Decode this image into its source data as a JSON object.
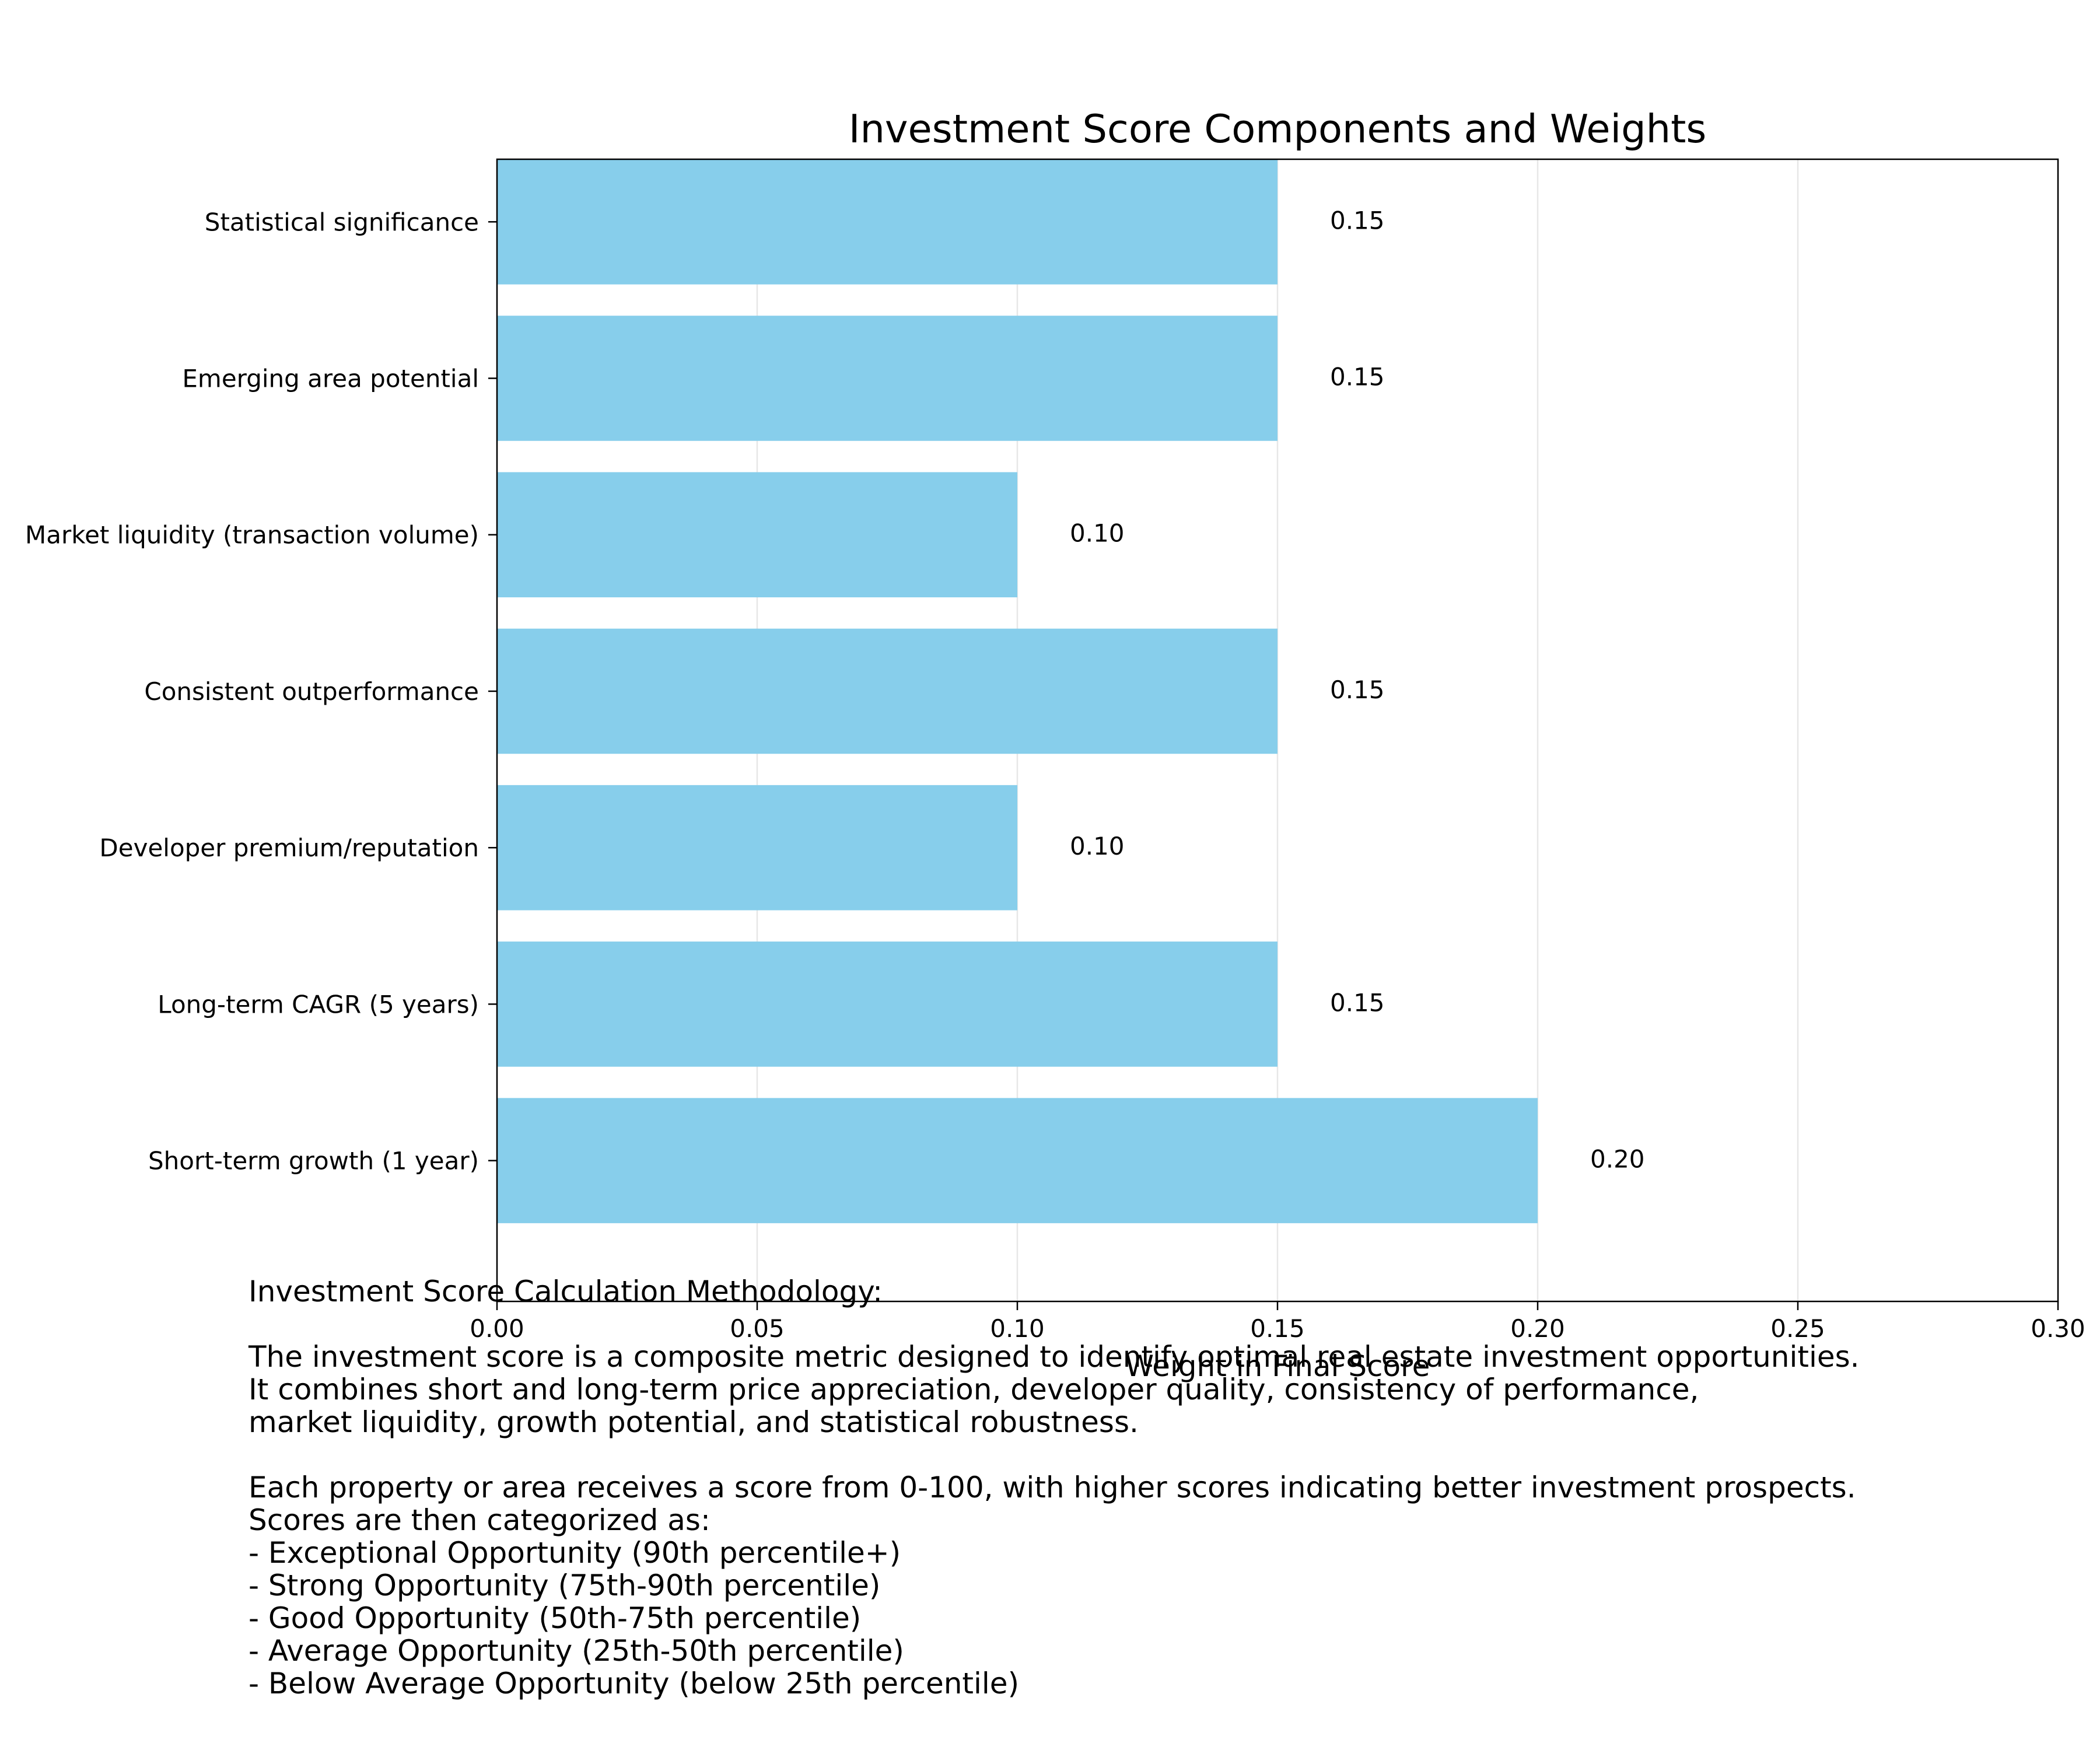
{
  "chart_data": {
    "type": "bar",
    "orientation": "horizontal",
    "title": "Investment Score Components and Weights",
    "xlabel": "Weight in Final Score",
    "ylabel": "",
    "xlim": [
      0,
      0.3
    ],
    "xticks": [
      "0.00",
      "0.05",
      "0.10",
      "0.15",
      "0.20",
      "0.25",
      "0.30"
    ],
    "grid": "x",
    "bar_color": "#87CEEB",
    "categories": [
      "Short-term growth (1 year)",
      "Long-term CAGR (5 years)",
      "Developer premium/reputation",
      "Consistent outperformance",
      "Market liquidity (transaction volume)",
      "Emerging area potential",
      "Statistical significance"
    ],
    "values": [
      0.2,
      0.15,
      0.1,
      0.15,
      0.1,
      0.15,
      0.15
    ],
    "value_labels": [
      "0.20",
      "0.15",
      "0.10",
      "0.15",
      "0.10",
      "0.15",
      "0.15"
    ]
  },
  "methodology": {
    "lines": [
      "Investment Score Calculation Methodology:",
      "",
      "The investment score is a composite metric designed to identify optimal real estate investment opportunities.",
      "It combines short and long-term price appreciation, developer quality, consistency of performance,",
      "market liquidity, growth potential, and statistical robustness.",
      "",
      "Each property or area receives a score from 0-100, with higher scores indicating better investment prospects.",
      "Scores are then categorized as:",
      "- Exceptional Opportunity (90th percentile+)",
      "- Strong Opportunity (75th-90th percentile)",
      "- Good Opportunity (50th-75th percentile)",
      "- Average Opportunity (25th-50th percentile)",
      "- Below Average Opportunity (below 25th percentile)"
    ]
  }
}
